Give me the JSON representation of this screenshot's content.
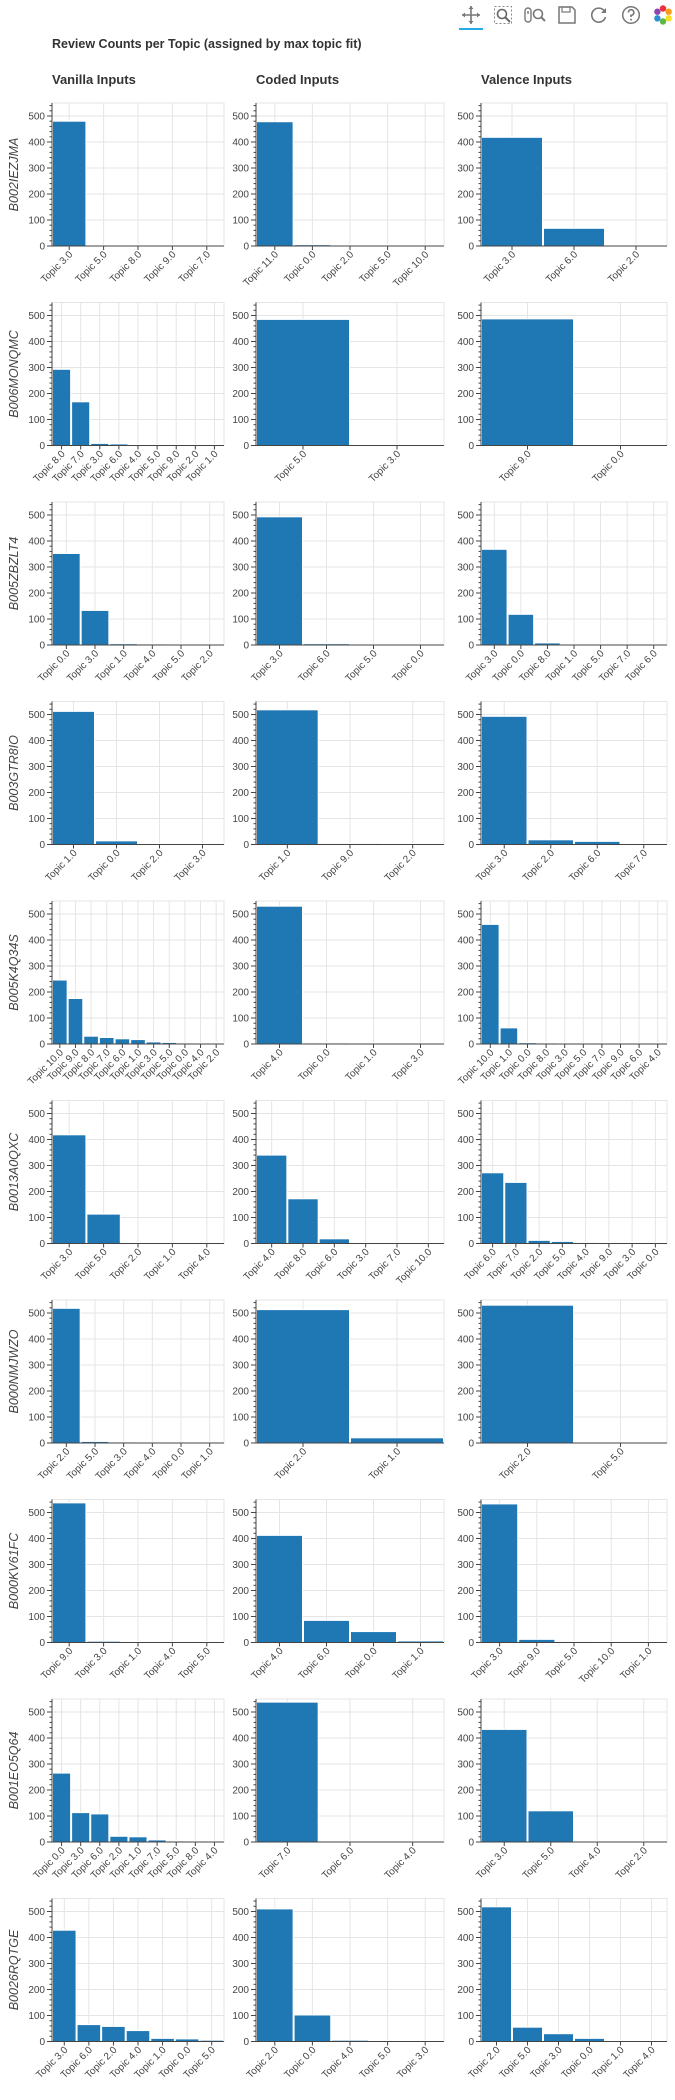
{
  "title": "Review Counts per Topic (assigned by max topic fit)",
  "columns": [
    "Vanilla Inputs",
    "Coded Inputs",
    "Valence Inputs"
  ],
  "toolbar": {
    "tools": [
      {
        "name": "pan-icon",
        "active": true
      },
      {
        "name": "box-zoom-icon",
        "active": false
      },
      {
        "name": "wheel-zoom-icon",
        "active": false
      },
      {
        "name": "save-icon",
        "active": false
      },
      {
        "name": "reset-icon",
        "active": false
      },
      {
        "name": "help-icon",
        "active": false
      },
      {
        "name": "bokeh-logo-icon",
        "active": false
      }
    ]
  },
  "chart_data": {
    "type": "bar",
    "ylim": [
      0,
      550
    ],
    "yticks": [
      0,
      100,
      200,
      300,
      400,
      500
    ],
    "grid": true,
    "rows": [
      {
        "label": "B002IEZJMA",
        "panels": [
          {
            "categories": [
              "Topic 3.0",
              "Topic 5.0",
              "Topic 8.0",
              "Topic 9.0",
              "Topic 7.0"
            ],
            "values": [
              480,
              2,
              1,
              1,
              1
            ]
          },
          {
            "categories": [
              "Topic 11.0",
              "Topic 0.0",
              "Topic 2.0",
              "Topic 5.0",
              "Topic 10.0"
            ],
            "values": [
              478,
              5,
              2,
              1,
              1
            ]
          },
          {
            "categories": [
              "Topic 3.0",
              "Topic 6.0",
              "Topic 2.0"
            ],
            "values": [
              418,
              68,
              2
            ]
          }
        ]
      },
      {
        "label": "B006MONQMC",
        "panels": [
          {
            "categories": [
              "Topic 8.0",
              "Topic 7.0",
              "Topic 3.0",
              "Topic 6.0",
              "Topic 4.0",
              "Topic 5.0",
              "Topic 9.0",
              "Topic 2.0",
              "Topic 1.0"
            ],
            "values": [
              293,
              168,
              8,
              6,
              3,
              2,
              2,
              1,
              1
            ]
          },
          {
            "categories": [
              "Topic 5.0",
              "Topic 3.0"
            ],
            "values": [
              485,
              2
            ]
          },
          {
            "categories": [
              "Topic 9.0",
              "Topic 0.0"
            ],
            "values": [
              487,
              1
            ]
          }
        ]
      },
      {
        "label": "B005ZBZLT4",
        "panels": [
          {
            "categories": [
              "Topic 0.0",
              "Topic 3.0",
              "Topic 1.0",
              "Topic 4.0",
              "Topic 5.0",
              "Topic 2.0"
            ],
            "values": [
              352,
              133,
              5,
              4,
              2,
              1
            ]
          },
          {
            "categories": [
              "Topic 3.0",
              "Topic 6.0",
              "Topic 5.0",
              "Topic 0.0"
            ],
            "values": [
              493,
              5,
              2,
              1
            ]
          },
          {
            "categories": [
              "Topic 3.0",
              "Topic 0.0",
              "Topic 8.0",
              "Topic 1.0",
              "Topic 5.0",
              "Topic 7.0",
              "Topic 6.0"
            ],
            "values": [
              368,
              118,
              8,
              2,
              1,
              1,
              1
            ]
          }
        ]
      },
      {
        "label": "B003GTR8IO",
        "panels": [
          {
            "categories": [
              "Topic 1.0",
              "Topic 0.0",
              "Topic 2.0",
              "Topic 3.0"
            ],
            "values": [
              512,
              14,
              2,
              1
            ]
          },
          {
            "categories": [
              "Topic 1.0",
              "Topic 9.0",
              "Topic 2.0"
            ],
            "values": [
              518,
              4,
              1
            ]
          },
          {
            "categories": [
              "Topic 3.0",
              "Topic 2.0",
              "Topic 6.0",
              "Topic 7.0"
            ],
            "values": [
              493,
              18,
              12,
              2
            ]
          }
        ]
      },
      {
        "label": "B005K4Q34S",
        "panels": [
          {
            "categories": [
              "Topic 10.0",
              "Topic 9.0",
              "Topic 8.0",
              "Topic 7.0",
              "Topic 6.0",
              "Topic 1.0",
              "Topic 3.0",
              "Topic 5.0",
              "Topic 0.0",
              "Topic 4.0",
              "Topic 2.0"
            ],
            "values": [
              246,
              175,
              30,
              25,
              20,
              17,
              8,
              6,
              4,
              3,
              2
            ]
          },
          {
            "categories": [
              "Topic 4.0",
              "Topic 0.0",
              "Topic 1.0",
              "Topic 3.0"
            ],
            "values": [
              530,
              4,
              2,
              1
            ]
          },
          {
            "categories": [
              "Topic 10.0",
              "Topic 1.0",
              "Topic 0.0",
              "Topic 8.0",
              "Topic 3.0",
              "Topic 5.0",
              "Topic 7.0",
              "Topic 9.0",
              "Topic 6.0",
              "Topic 4.0"
            ],
            "values": [
              460,
              62,
              5,
              4,
              3,
              2,
              2,
              1,
              1,
              1
            ]
          }
        ]
      },
      {
        "label": "B0013A0QXC",
        "panels": [
          {
            "categories": [
              "Topic 3.0",
              "Topic 5.0",
              "Topic 2.0",
              "Topic 1.0",
              "Topic 4.0"
            ],
            "values": [
              418,
              113,
              2,
              1,
              1
            ]
          },
          {
            "categories": [
              "Topic 4.0",
              "Topic 8.0",
              "Topic 6.0",
              "Topic 3.0",
              "Topic 7.0",
              "Topic 10.0"
            ],
            "values": [
              340,
              172,
              18,
              2,
              1,
              1
            ]
          },
          {
            "categories": [
              "Topic 6.0",
              "Topic 7.0",
              "Topic 2.0",
              "Topic 5.0",
              "Topic 4.0",
              "Topic 9.0",
              "Topic 3.0",
              "Topic 0.0"
            ],
            "values": [
              272,
              235,
              12,
              8,
              4,
              2,
              1,
              1
            ]
          }
        ]
      },
      {
        "label": "B000NMJWZO",
        "panels": [
          {
            "categories": [
              "Topic 2.0",
              "Topic 5.0",
              "Topic 3.0",
              "Topic 4.0",
              "Topic 0.0",
              "Topic 1.0"
            ],
            "values": [
              518,
              6,
              4,
              2,
              1,
              1
            ]
          },
          {
            "categories": [
              "Topic 2.0",
              "Topic 1.0"
            ],
            "values": [
              513,
              20
            ]
          },
          {
            "categories": [
              "Topic 2.0",
              "Topic 5.0"
            ],
            "values": [
              530,
              2
            ]
          }
        ]
      },
      {
        "label": "B000KV61FC",
        "panels": [
          {
            "categories": [
              "Topic 9.0",
              "Topic 3.0",
              "Topic 1.0",
              "Topic 4.0",
              "Topic 5.0"
            ],
            "values": [
              537,
              5,
              3,
              2,
              1
            ]
          },
          {
            "categories": [
              "Topic 4.0",
              "Topic 6.0",
              "Topic 0.0",
              "Topic 1.0"
            ],
            "values": [
              412,
              85,
              42,
              6
            ]
          },
          {
            "categories": [
              "Topic 3.0",
              "Topic 9.0",
              "Topic 5.0",
              "Topic 10.0",
              "Topic 1.0"
            ],
            "values": [
              533,
              12,
              4,
              2,
              1
            ]
          }
        ]
      },
      {
        "label": "B001EO5Q64",
        "panels": [
          {
            "categories": [
              "Topic 0.0",
              "Topic 3.0",
              "Topic 6.0",
              "Topic 2.0",
              "Topic 1.0",
              "Topic 7.0",
              "Topic 5.0",
              "Topic 8.0",
              "Topic 4.0"
            ],
            "values": [
              265,
              113,
              108,
              22,
              20,
              8,
              4,
              3,
              2
            ]
          },
          {
            "categories": [
              "Topic 7.0",
              "Topic 6.0",
              "Topic 4.0"
            ],
            "values": [
              538,
              2,
              1
            ]
          },
          {
            "categories": [
              "Topic 3.0",
              "Topic 5.0",
              "Topic 4.0",
              "Topic 2.0"
            ],
            "values": [
              433,
              120,
              2,
              1
            ]
          }
        ]
      },
      {
        "label": "B0026RQTGE",
        "panels": [
          {
            "categories": [
              "Topic 3.0",
              "Topic 6.0",
              "Topic 2.0",
              "Topic 4.0",
              "Topic 1.0",
              "Topic 0.0",
              "Topic 5.0"
            ],
            "values": [
              428,
              65,
              58,
              42,
              12,
              10,
              5
            ]
          },
          {
            "categories": [
              "Topic 2.0",
              "Topic 0.0",
              "Topic 4.0",
              "Topic 5.0",
              "Topic 3.0"
            ],
            "values": [
              510,
              102,
              5,
              2,
              1
            ]
          },
          {
            "categories": [
              "Topic 2.0",
              "Topic 5.0",
              "Topic 3.0",
              "Topic 0.0",
              "Topic 1.0",
              "Topic 4.0"
            ],
            "values": [
              518,
              55,
              30,
              12,
              2,
              1
            ]
          }
        ]
      }
    ]
  }
}
